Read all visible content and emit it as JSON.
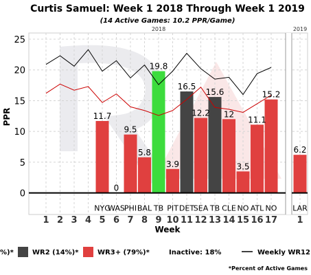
{
  "chart_data": {
    "type": "bar",
    "title": "Curtis Samuel: Week 1 2018 Through Week 1 2019",
    "subtitle": "(14 Active Games: 10.2 PPR/Game)",
    "xlabel": "Week",
    "ylabel": "PPR",
    "ylim": [
      -3.5,
      26
    ],
    "yticks": [
      0,
      5,
      10,
      15,
      20,
      25
    ],
    "grid": true,
    "season_labels": [
      "2018",
      "2019"
    ],
    "weeks": [
      "1",
      "2",
      "3",
      "4",
      "5",
      "6",
      "7",
      "8",
      "9",
      "10",
      "11",
      "12",
      "13",
      "14",
      "15",
      "16",
      "17",
      "1"
    ],
    "opponents": [
      "",
      "",
      "",
      "",
      "NYG",
      "WAS",
      "PHI",
      "BAL",
      "TB",
      "PIT",
      "DET",
      "SEA",
      "TB",
      "CLE",
      "NO",
      "ATL",
      "NO",
      "LAR"
    ],
    "bars": [
      {
        "week_index": 4,
        "value": 11.7,
        "role": "WR3+",
        "label": "11.7"
      },
      {
        "week_index": 5,
        "value": 0,
        "role": "WR3+",
        "label": "0"
      },
      {
        "week_index": 6,
        "value": 9.5,
        "role": "WR3+",
        "label": "9.5"
      },
      {
        "week_index": 7,
        "value": 5.8,
        "role": "WR3+",
        "label": "5.8"
      },
      {
        "week_index": 8,
        "value": 19.8,
        "role": "WR1",
        "label": "19.8"
      },
      {
        "week_index": 9,
        "value": 3.9,
        "role": "WR3+",
        "label": "3.9"
      },
      {
        "week_index": 10,
        "value": 16.5,
        "role": "WR2",
        "label": "16.5"
      },
      {
        "week_index": 11,
        "value": 12.2,
        "role": "WR3+",
        "label": "12.2"
      },
      {
        "week_index": 12,
        "value": 15.6,
        "role": "WR2",
        "label": "15.6"
      },
      {
        "week_index": 13,
        "value": 12,
        "role": "WR3+",
        "label": "12"
      },
      {
        "week_index": 14,
        "value": 3.5,
        "role": "WR3+",
        "label": "3.5"
      },
      {
        "week_index": 15,
        "value": 11.1,
        "role": "WR3+",
        "label": "11.1"
      },
      {
        "week_index": 16,
        "value": 15.2,
        "role": "WR3+",
        "label": "15.2"
      },
      {
        "week_index": 17,
        "value": 6.2,
        "role": "WR3+",
        "label": "6.2"
      }
    ],
    "inactive_week_indices": [
      0,
      1,
      2,
      3
    ],
    "series": [
      {
        "name": "Weekly WR12",
        "color": "#000000",
        "week_indices": [
          0,
          1,
          2,
          3,
          4,
          5,
          6,
          7,
          8,
          9,
          10,
          11,
          12,
          13,
          14,
          15,
          16
        ],
        "values": [
          20.9,
          22.3,
          20.6,
          23.3,
          19.8,
          21.5,
          18.7,
          20.8,
          17.6,
          19.8,
          22.7,
          20.2,
          18.5,
          18.8,
          16.0,
          19.4,
          20.4
        ]
      },
      {
        "name": "",
        "color": "#cc0000",
        "week_indices": [
          0,
          1,
          2,
          3,
          4,
          5,
          6,
          7,
          8,
          9,
          10,
          11,
          12,
          13,
          14,
          15,
          16
        ],
        "values": [
          16.2,
          17.7,
          16.7,
          17.3,
          14.7,
          16.1,
          14.0,
          13.4,
          12.6,
          13.4,
          15.2,
          17.2,
          13.9,
          13.6,
          13.1,
          14.5,
          15.9
        ]
      }
    ],
    "legend": {
      "placement": "bottom",
      "items": [
        {
          "label": "%)*",
          "kind": "text"
        },
        {
          "label": "WR2 (14%)*",
          "kind": "swatch",
          "color": "#444444"
        },
        {
          "label": "WR3+ (79%)*",
          "kind": "swatch",
          "color": "#e0403f"
        },
        {
          "label": "Inactive: 18%",
          "kind": "text"
        },
        {
          "label": "Weekly WR12",
          "kind": "line",
          "color": "#000000"
        }
      ]
    },
    "footnote": "*Percent of Active Games",
    "colors": {
      "WR1": "#3ddc3d",
      "WR2": "#444444",
      "WR3+": "#e0403f"
    }
  }
}
